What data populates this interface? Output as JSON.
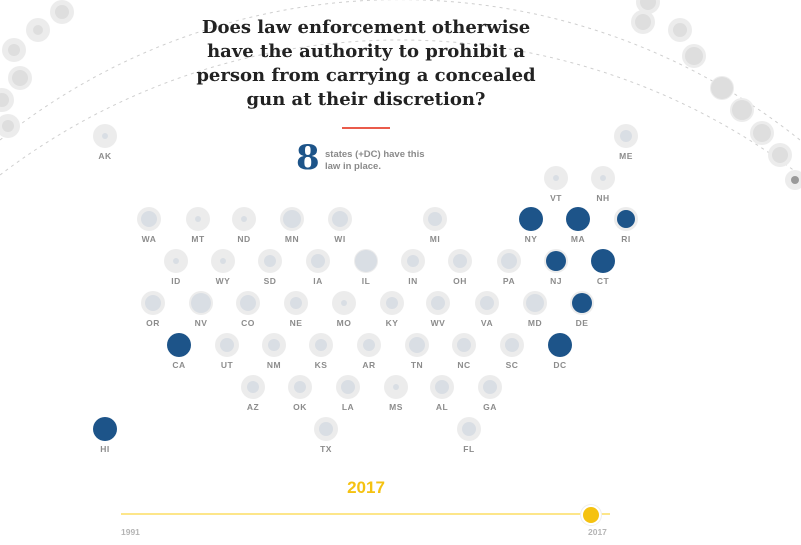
{
  "question": "Does law enforcement otherwise have the authority to prohibit a person from carrying a concealed gun at their discretion?",
  "summary": {
    "count": "8",
    "text": "states (+DC) have this law in place."
  },
  "colors": {
    "active": "#1d5489",
    "inactive_ring": "#ececec",
    "inactive_dot": "#d9dee4",
    "accent_rule": "#ea5b4b",
    "timeline": "#f5c211"
  },
  "states": [
    {
      "abbr": "AK",
      "active": false
    },
    {
      "abbr": "ME",
      "active": false
    },
    {
      "abbr": "VT",
      "active": false
    },
    {
      "abbr": "NH",
      "active": false
    },
    {
      "abbr": "WA",
      "active": false
    },
    {
      "abbr": "MT",
      "active": false
    },
    {
      "abbr": "ND",
      "active": false
    },
    {
      "abbr": "MN",
      "active": false
    },
    {
      "abbr": "WI",
      "active": false
    },
    {
      "abbr": "MI",
      "active": false
    },
    {
      "abbr": "NY",
      "active": true
    },
    {
      "abbr": "MA",
      "active": true
    },
    {
      "abbr": "RI",
      "active": true
    },
    {
      "abbr": "ID",
      "active": false
    },
    {
      "abbr": "WY",
      "active": false
    },
    {
      "abbr": "SD",
      "active": false
    },
    {
      "abbr": "IA",
      "active": false
    },
    {
      "abbr": "IL",
      "active": false
    },
    {
      "abbr": "IN",
      "active": false
    },
    {
      "abbr": "OH",
      "active": false
    },
    {
      "abbr": "PA",
      "active": false
    },
    {
      "abbr": "NJ",
      "active": true
    },
    {
      "abbr": "CT",
      "active": true
    },
    {
      "abbr": "OR",
      "active": false
    },
    {
      "abbr": "NV",
      "active": false
    },
    {
      "abbr": "CO",
      "active": false
    },
    {
      "abbr": "NE",
      "active": false
    },
    {
      "abbr": "MO",
      "active": false
    },
    {
      "abbr": "KY",
      "active": false
    },
    {
      "abbr": "WV",
      "active": false
    },
    {
      "abbr": "VA",
      "active": false
    },
    {
      "abbr": "MD",
      "active": false
    },
    {
      "abbr": "DE",
      "active": true
    },
    {
      "abbr": "CA",
      "active": true
    },
    {
      "abbr": "UT",
      "active": false
    },
    {
      "abbr": "NM",
      "active": false
    },
    {
      "abbr": "KS",
      "active": false
    },
    {
      "abbr": "AR",
      "active": false
    },
    {
      "abbr": "TN",
      "active": false
    },
    {
      "abbr": "NC",
      "active": false
    },
    {
      "abbr": "SC",
      "active": false
    },
    {
      "abbr": "DC",
      "active": true
    },
    {
      "abbr": "AZ",
      "active": false
    },
    {
      "abbr": "OK",
      "active": false
    },
    {
      "abbr": "LA",
      "active": false
    },
    {
      "abbr": "MS",
      "active": false
    },
    {
      "abbr": "AL",
      "active": false
    },
    {
      "abbr": "GA",
      "active": false
    },
    {
      "abbr": "HI",
      "active": true
    },
    {
      "abbr": "TX",
      "active": false
    },
    {
      "abbr": "FL",
      "active": false
    }
  ],
  "timeline": {
    "current_year": "2017",
    "start_label": "1991",
    "end_label": "2017",
    "min": 1991,
    "max": 2017,
    "value": 2017
  }
}
